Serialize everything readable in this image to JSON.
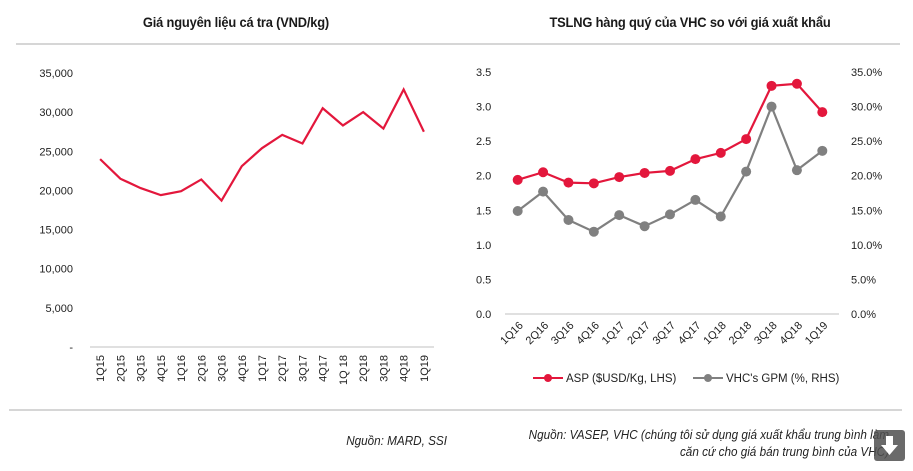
{
  "left_title": "Giá nguyên liệu cá tra (VND/kg)",
  "right_title": "TSLNG hàng quý của VHC so với giá xuất khẩu",
  "left_source": "Nguồn: MARD, SSI",
  "right_source_line1": "Nguồn: VASEP, VHC (chúng tôi sử dụng giá xuất khẩu trung bình làm",
  "right_source_line2": "căn cứ cho giá bán trung bình của VHC)",
  "download_icon": "download-arrow-icon",
  "colors": {
    "red": "#e3173c",
    "gray": "#808080",
    "rule": "#d6d6d6"
  },
  "chart_data": [
    {
      "type": "line",
      "title": "Giá nguyên liệu cá tra (VND/kg)",
      "xlabel": "",
      "ylabel": "",
      "categories": [
        "1Q15",
        "2Q15",
        "3Q15",
        "4Q15",
        "1Q16",
        "2Q16",
        "3Q16",
        "4Q16",
        "1Q17",
        "2Q17",
        "3Q17",
        "4Q17",
        "1Q 18",
        "2Q18",
        "3Q18",
        "4Q18",
        "1Q19"
      ],
      "series": [
        {
          "name": "Giá nguyên liệu",
          "color": "#e3173c",
          "values": [
            24000,
            21500,
            20300,
            19400,
            19900,
            21400,
            18700,
            23100,
            25400,
            27100,
            26000,
            30500,
            28300,
            30000,
            27900,
            32900,
            27500
          ]
        }
      ],
      "ylim": [
        0,
        35000
      ],
      "yticks": [
        0,
        5000,
        10000,
        15000,
        20000,
        25000,
        30000,
        35000
      ],
      "ytick_labels": [
        "-",
        "5,000",
        "10,000",
        "15,000",
        "20,000",
        "25,000",
        "30,000",
        "35,000"
      ],
      "grid": false,
      "legend": "none"
    },
    {
      "type": "line",
      "title": "TSLNG hàng quý của VHC so với giá xuất khẩu",
      "xlabel": "",
      "ylabel": "",
      "categories": [
        "1Q16",
        "2Q16",
        "3Q16",
        "4Q16",
        "1Q17",
        "2Q17",
        "3Q17",
        "4Q17",
        "1Q18",
        "2Q18",
        "3Q18",
        "4Q18",
        "1Q19"
      ],
      "series": [
        {
          "name": "ASP ($USD/Kg, LHS)",
          "axis": "left",
          "color": "#e3173c",
          "values": [
            1.94,
            2.05,
            1.9,
            1.89,
            1.98,
            2.04,
            2.07,
            2.24,
            2.33,
            2.53,
            3.3,
            3.33,
            2.92
          ]
        },
        {
          "name": "VHC's GPM (%, RHS)",
          "axis": "right",
          "color": "#808080",
          "values": [
            14.9,
            17.7,
            13.6,
            11.9,
            14.3,
            12.7,
            14.4,
            16.5,
            14.1,
            20.6,
            30.0,
            20.8,
            23.6
          ]
        }
      ],
      "ylim_left": [
        0,
        3.5
      ],
      "yticks_left": [
        "0.0",
        "0.5",
        "1.0",
        "1.5",
        "2.0",
        "2.5",
        "3.0",
        "3.5"
      ],
      "ylim_right": [
        0,
        35
      ],
      "yticks_right": [
        "0.0%",
        "5.0%",
        "10.0%",
        "15.0%",
        "20.0%",
        "25.0%",
        "30.0%",
        "35.0%"
      ],
      "grid": false,
      "legend": "bottom"
    }
  ]
}
